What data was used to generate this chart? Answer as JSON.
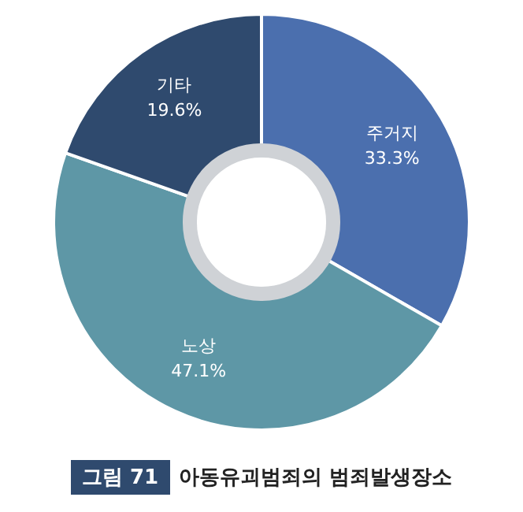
{
  "chart_data": {
    "type": "donut",
    "title": "아동유괴범죄의 범죄발생장소",
    "annotations": [
      "그림 71"
    ],
    "categories": [
      "주거지",
      "노상",
      "기타"
    ],
    "values": [
      33.3,
      47.1,
      19.6
    ],
    "value_labels": [
      "33.3%",
      "47.1%",
      "19.6%"
    ],
    "colors": [
      "#4b6fae",
      "#5e97a6",
      "#2f4a6e"
    ],
    "legend": false
  }
}
